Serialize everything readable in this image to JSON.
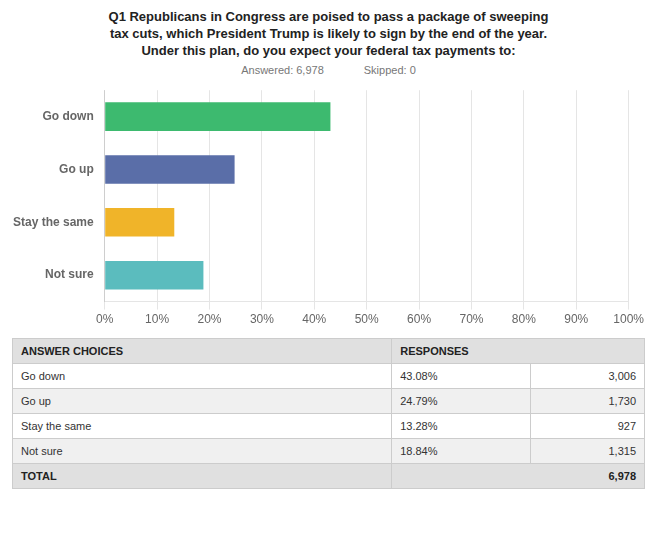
{
  "chart_data": {
    "type": "bar",
    "orientation": "horizontal",
    "title": [
      "Q1 Republicans in Congress are poised to pass a package of sweeping",
      "tax cuts, which President Trump is likely to sign by the end of the year.",
      "Under this plan, do you expect your federal tax payments to:"
    ],
    "annotations": [
      "Answered: 6,978",
      "Skipped: 0"
    ],
    "categories": [
      "Go down",
      "Go up",
      "Stay the same",
      "Not sure"
    ],
    "values": [
      43.08,
      24.79,
      13.28,
      18.84
    ],
    "colors": [
      "#3dba6f",
      "#5a6ea8",
      "#f0b429",
      "#5bbcbe"
    ],
    "xlim": [
      0,
      100
    ],
    "xticks": [
      {
        "value": 0,
        "label": "0%"
      },
      {
        "value": 10,
        "label": "10%"
      },
      {
        "value": 20,
        "label": "20%"
      },
      {
        "value": 30,
        "label": "30%"
      },
      {
        "value": 40,
        "label": "40%"
      },
      {
        "value": 50,
        "label": "50%"
      },
      {
        "value": 60,
        "label": "60%"
      },
      {
        "value": 70,
        "label": "70%"
      },
      {
        "value": 80,
        "label": "80%"
      },
      {
        "value": 90,
        "label": "90%"
      },
      {
        "value": 100,
        "label": "100%"
      }
    ],
    "grid": true,
    "table": {
      "columns": [
        "ANSWER CHOICES",
        "RESPONSES"
      ],
      "rows": [
        [
          "Go down",
          "43.08%",
          "3,006"
        ],
        [
          "Go up",
          "24.79%",
          "1,730"
        ],
        [
          "Stay the same",
          "13.28%",
          "927"
        ],
        [
          "Not sure",
          "18.84%",
          "1,315"
        ]
      ],
      "total": [
        "TOTAL",
        "6,978"
      ]
    }
  }
}
